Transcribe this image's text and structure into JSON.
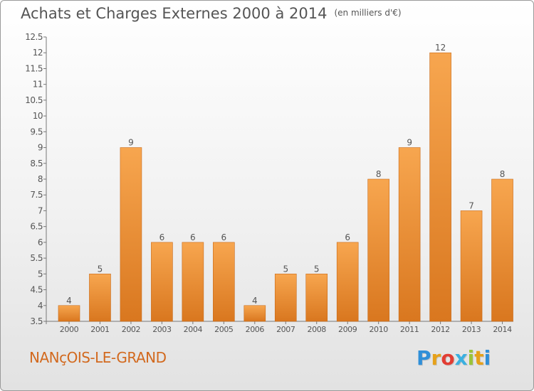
{
  "title": "Achats et Charges Externes 2000 à 2014",
  "unit": "(en milliers d'€)",
  "city": "NANçOIS-LE-GRAND",
  "logo": {
    "letters": [
      "P",
      "r",
      "o",
      "x",
      "i",
      "t",
      "i"
    ],
    "colors": [
      "#2f8fd8",
      "#e6a11a",
      "#e23d33",
      "#3bb0e0",
      "#9ac43a",
      "#e6a11a",
      "#2f8fd8"
    ]
  },
  "colors": {
    "bar_top": "#f7a64f",
    "bar_bottom": "#d9771f",
    "bar_edge": "#c96a18",
    "text": "#555555",
    "city": "#d2691e"
  },
  "chart_data": {
    "type": "bar",
    "categories": [
      "2000",
      "2001",
      "2002",
      "2003",
      "2004",
      "2005",
      "2006",
      "2007",
      "2008",
      "2009",
      "2010",
      "2011",
      "2012",
      "2013",
      "2014"
    ],
    "values": [
      4,
      5,
      9,
      6,
      6,
      6,
      4,
      5,
      5,
      6,
      8,
      9,
      12,
      7,
      8
    ],
    "data_labels": [
      "4",
      "5",
      "9",
      "6",
      "6",
      "6",
      "4",
      "5",
      "5",
      "6",
      "8",
      "9",
      "12",
      "7",
      "8"
    ],
    "ylim": [
      3.5,
      12.5
    ],
    "yticks": [
      "3.5",
      "4",
      "4.5",
      "5",
      "5.5",
      "6",
      "6.5",
      "7",
      "7.5",
      "8",
      "8.5",
      "9",
      "9.5",
      "10",
      "10.5",
      "11",
      "11.5",
      "12",
      "12.5"
    ],
    "grid": false
  }
}
